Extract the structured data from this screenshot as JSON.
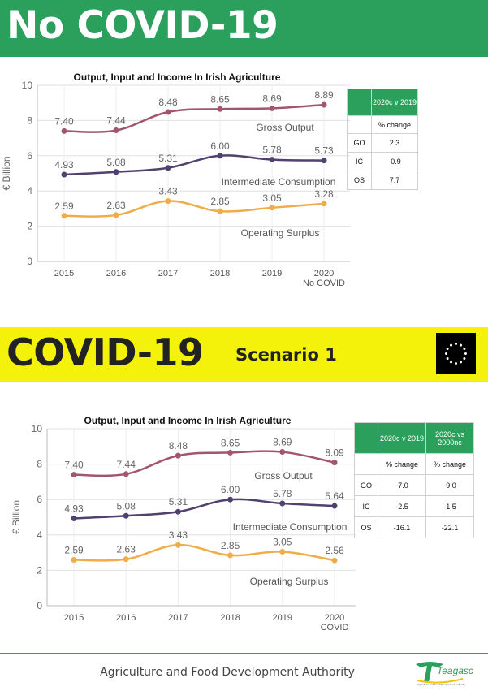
{
  "banner1": {
    "title": "No COVID-19"
  },
  "banner2": {
    "title": "COVID-19",
    "subtitle": "Scenario 1"
  },
  "footer": {
    "text": "Agriculture and Food Development Authority",
    "logo_text": "Teagasc",
    "logo_tagline": "Agriculture and Food Development Authority"
  },
  "colors": {
    "green": "#2aa05c",
    "yellow": "#f4f20a",
    "go": "#a2566d",
    "ic": "#52406f",
    "os": "#f0ac48"
  },
  "chart_data": [
    {
      "type": "line",
      "title": "Output, Input and Income In Irish Agriculture",
      "ylabel": "€ Billion",
      "xlabel": "",
      "ylim": [
        0,
        10
      ],
      "yticks": [
        "0",
        "2",
        "4",
        "6",
        "8",
        "10"
      ],
      "categories": [
        "2015",
        "2016",
        "2017",
        "2018",
        "2019",
        "2020 No COVID"
      ],
      "series": [
        {
          "name": "Gross Output",
          "color": "#a2566d",
          "values": [
            7.4,
            7.44,
            8.48,
            8.65,
            8.69,
            8.89
          ],
          "labels": [
            "7.40",
            "7.44",
            "8.48",
            "8.65",
            "8.69",
            "8.89"
          ]
        },
        {
          "name": "Intermediate Consumption",
          "color": "#52406f",
          "values": [
            4.93,
            5.08,
            5.31,
            6.0,
            5.78,
            5.73
          ],
          "labels": [
            "4.93",
            "5.08",
            "5.31",
            "6.00",
            "5.78",
            "5.73"
          ]
        },
        {
          "name": "Operating Surplus",
          "color": "#f0ac48",
          "values": [
            2.59,
            2.63,
            3.43,
            2.85,
            3.05,
            3.28
          ],
          "labels": [
            "2.59",
            "2.63",
            "3.43",
            "2.85",
            "3.05",
            "3.28"
          ]
        }
      ],
      "table": {
        "headers": [
          "2020c v 2019"
        ],
        "subheaders": [
          "% change"
        ],
        "rows": [
          {
            "label": "GO",
            "values": [
              "2.3"
            ]
          },
          {
            "label": "IC",
            "values": [
              "-0.9"
            ]
          },
          {
            "label": "OS",
            "values": [
              "7.7"
            ]
          }
        ]
      },
      "grid": true
    },
    {
      "type": "line",
      "title": "Output, Input and Income In Irish Agriculture",
      "ylabel": "€ Billion",
      "xlabel": "",
      "ylim": [
        0,
        10
      ],
      "yticks": [
        "0",
        "2",
        "4",
        "6",
        "8",
        "10"
      ],
      "categories": [
        "2015",
        "2016",
        "2017",
        "2018",
        "2019",
        "2020 COVID"
      ],
      "series": [
        {
          "name": "Gross Output",
          "color": "#a2566d",
          "values": [
            7.4,
            7.44,
            8.48,
            8.65,
            8.69,
            8.09
          ],
          "labels": [
            "7.40",
            "7.44",
            "8.48",
            "8.65",
            "8.69",
            "8.09"
          ]
        },
        {
          "name": "Intermediate Consumption",
          "color": "#52406f",
          "values": [
            4.93,
            5.08,
            5.31,
            6.0,
            5.78,
            5.64
          ],
          "labels": [
            "4.93",
            "5.08",
            "5.31",
            "6.00",
            "5.78",
            "5.64"
          ]
        },
        {
          "name": "Operating Surplus",
          "color": "#f0ac48",
          "values": [
            2.59,
            2.63,
            3.43,
            2.85,
            3.05,
            2.56
          ],
          "labels": [
            "2.59",
            "2.63",
            "3.43",
            "2.85",
            "3.05",
            "2.56"
          ]
        }
      ],
      "table": {
        "headers": [
          "2020c v 2019",
          "2020c vs 2000nc"
        ],
        "subheaders": [
          "% change",
          "% change"
        ],
        "rows": [
          {
            "label": "GO",
            "values": [
              "-7.0",
              "-9.0"
            ]
          },
          {
            "label": "IC",
            "values": [
              "-2.5",
              "-1.5"
            ]
          },
          {
            "label": "OS",
            "values": [
              "-16.1",
              "-22.1"
            ]
          }
        ]
      },
      "grid": true
    }
  ]
}
